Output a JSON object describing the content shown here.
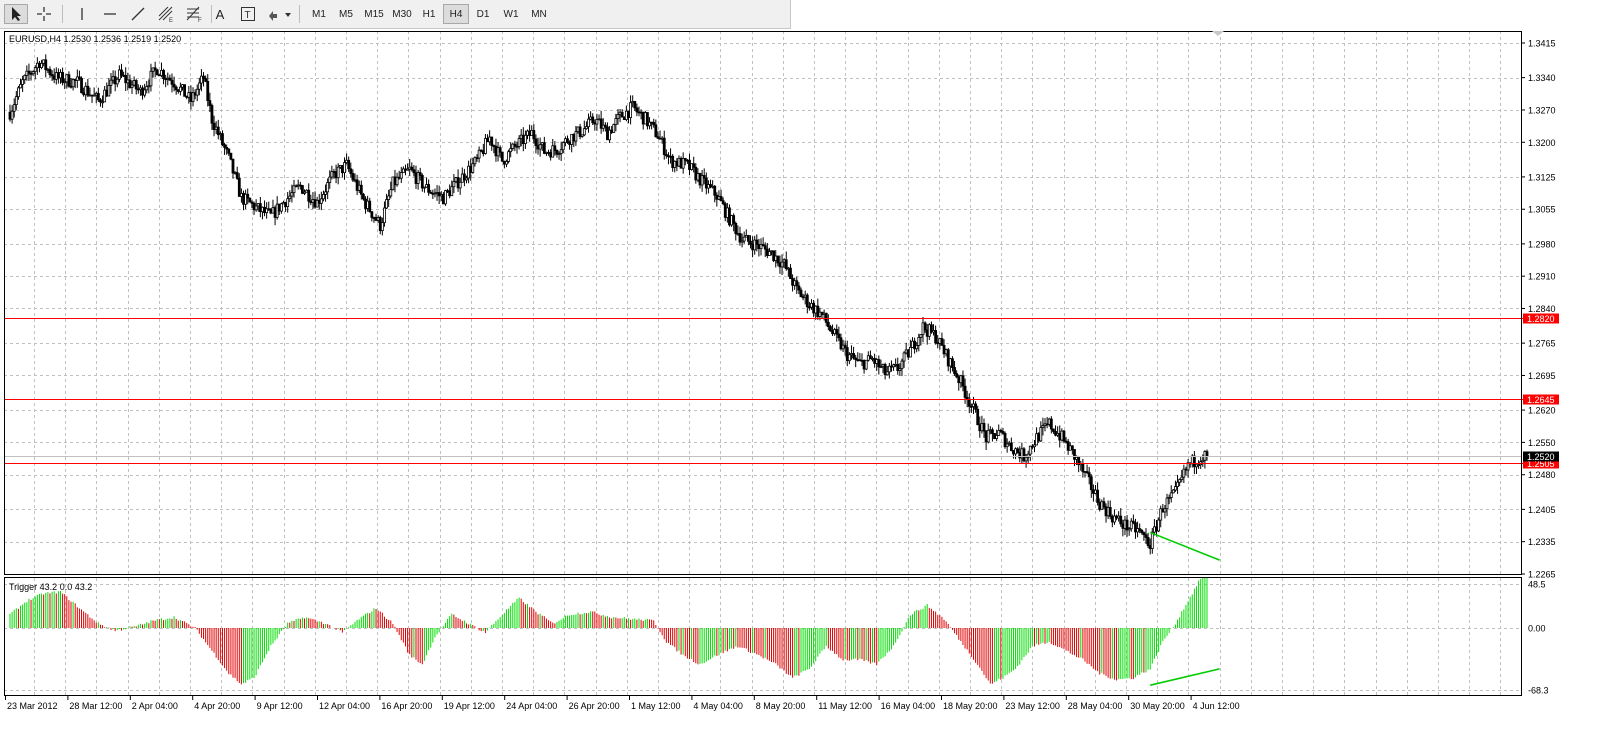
{
  "toolbar": {
    "tools": [
      {
        "name": "cursor-tool",
        "icon": "arrow-cursor-icon"
      },
      {
        "name": "crosshair-tool",
        "icon": "crosshair-icon"
      },
      {
        "name": "vertical-line-tool",
        "icon": "vertical-line-icon"
      },
      {
        "name": "horizontal-line-tool",
        "icon": "horizontal-line-icon"
      },
      {
        "name": "trendline-tool",
        "icon": "trendline-icon"
      },
      {
        "name": "equidistant-channel-tool",
        "icon": "channel-icon"
      },
      {
        "name": "fibonacci-tool",
        "icon": "fibonacci-icon"
      },
      {
        "name": "text-tool",
        "icon": "text-icon",
        "label": "A"
      },
      {
        "name": "text-label-tool",
        "icon": "text-label-icon",
        "label": "T"
      },
      {
        "name": "arrows-tool",
        "icon": "arrows-dropdown-icon"
      }
    ],
    "timeframes": [
      "M1",
      "M5",
      "M15",
      "M30",
      "H1",
      "H4",
      "D1",
      "W1",
      "MN"
    ],
    "active_timeframe": "H4"
  },
  "chart": {
    "info": "EURUSD,H4  1.2530 1.2536 1.2519 1.2520",
    "price_axis": [
      "1.3415",
      "1.3340",
      "1.3270",
      "1.3200",
      "1.3125",
      "1.3055",
      "1.2980",
      "1.2910",
      "1.2840",
      "1.2765",
      "1.2695",
      "1.2620",
      "1.2550",
      "1.2480",
      "1.2405",
      "1.2335",
      "1.2265"
    ],
    "hlines": [
      {
        "label": "1.2820",
        "price": 1.282,
        "color": "#ff0000"
      },
      {
        "label": "1.2645",
        "price": 1.2645,
        "color": "#ff0000"
      },
      {
        "label": "1.2505",
        "price": 1.2505,
        "color": "#ff0000"
      }
    ],
    "current_price": {
      "label": "1.2520",
      "price": 1.252
    },
    "colors": {
      "grid": "#c0c0c0",
      "candle": "#000000",
      "level": "#ff0000",
      "trend": "#00cc00",
      "hist_pos": "#00dd00",
      "hist_neg": "#e00000"
    }
  },
  "indicator": {
    "label": "Trigger 43.2 0.0 43.2",
    "axis": [
      "48.5",
      "0.00",
      "-68.3"
    ]
  },
  "time_axis": [
    "23 Mar 2012",
    "28 Mar 12:00",
    "2 Apr 04:00",
    "4 Apr 20:00",
    "9 Apr 12:00",
    "12 Apr 04:00",
    "16 Apr 20:00",
    "19 Apr 12:00",
    "24 Apr 04:00",
    "26 Apr 20:00",
    "1 May 12:00",
    "4 May 04:00",
    "8 May 20:00",
    "11 May 12:00",
    "16 May 04:00",
    "18 May 20:00",
    "23 May 12:00",
    "28 May 04:00",
    "30 May 20:00",
    "4 Jun 12:00"
  ],
  "chart_data": {
    "type": "candlestick",
    "symbol": "EURUSD",
    "timeframe": "H4",
    "ylim": [
      1.2265,
      1.3415
    ],
    "close_path": [
      [
        0,
        1.3265
      ],
      [
        6,
        1.333
      ],
      [
        14,
        1.3375
      ],
      [
        22,
        1.334
      ],
      [
        32,
        1.333
      ],
      [
        42,
        1.329
      ],
      [
        52,
        1.3345
      ],
      [
        62,
        1.331
      ],
      [
        70,
        1.336
      ],
      [
        78,
        1.333
      ],
      [
        86,
        1.329
      ],
      [
        92,
        1.334
      ],
      [
        96,
        1.325
      ],
      [
        104,
        1.3165
      ],
      [
        110,
        1.308
      ],
      [
        118,
        1.3055
      ],
      [
        124,
        1.304
      ],
      [
        130,
        1.307
      ],
      [
        138,
        1.3105
      ],
      [
        146,
        1.307
      ],
      [
        154,
        1.313
      ],
      [
        160,
        1.315
      ],
      [
        168,
        1.3075
      ],
      [
        176,
        1.302
      ],
      [
        182,
        1.311
      ],
      [
        190,
        1.314
      ],
      [
        198,
        1.31
      ],
      [
        206,
        1.308
      ],
      [
        214,
        1.312
      ],
      [
        222,
        1.316
      ],
      [
        228,
        1.321
      ],
      [
        234,
        1.316
      ],
      [
        240,
        1.319
      ],
      [
        248,
        1.322
      ],
      [
        254,
        1.318
      ],
      [
        260,
        1.3185
      ],
      [
        266,
        1.321
      ],
      [
        272,
        1.3225
      ],
      [
        278,
        1.325
      ],
      [
        284,
        1.322
      ],
      [
        290,
        1.3255
      ],
      [
        296,
        1.3275
      ],
      [
        302,
        1.325
      ],
      [
        308,
        1.3215
      ],
      [
        314,
        1.316
      ],
      [
        322,
        1.315
      ],
      [
        330,
        1.311
      ],
      [
        336,
        1.3085
      ],
      [
        342,
        1.3035
      ],
      [
        348,
        1.299
      ],
      [
        354,
        1.298
      ],
      [
        362,
        1.296
      ],
      [
        368,
        1.2935
      ],
      [
        374,
        1.288
      ],
      [
        380,
        1.285
      ],
      [
        386,
        1.2825
      ],
      [
        392,
        1.278
      ],
      [
        398,
        1.274
      ],
      [
        404,
        1.272
      ],
      [
        410,
        1.273
      ],
      [
        416,
        1.27
      ],
      [
        422,
        1.271
      ],
      [
        428,
        1.275
      ],
      [
        434,
        1.28
      ],
      [
        440,
        1.278
      ],
      [
        446,
        1.273
      ],
      [
        452,
        1.268
      ],
      [
        458,
        1.262
      ],
      [
        464,
        1.256
      ],
      [
        470,
        1.257
      ],
      [
        476,
        1.254
      ],
      [
        482,
        1.252
      ],
      [
        488,
        1.256
      ],
      [
        494,
        1.259
      ],
      [
        500,
        1.256
      ],
      [
        506,
        1.252
      ],
      [
        512,
        1.247
      ],
      [
        518,
        1.242
      ],
      [
        524,
        1.239
      ],
      [
        530,
        1.237
      ],
      [
        536,
        1.236
      ],
      [
        542,
        1.233
      ],
      [
        548,
        1.241
      ],
      [
        554,
        1.244
      ],
      [
        560,
        1.25
      ],
      [
        566,
        1.252
      ]
    ],
    "levels": [
      1.282,
      1.2645,
      1.2505
    ],
    "last": {
      "open": 1.253,
      "high": 1.2536,
      "low": 1.2519,
      "close": 1.252
    },
    "indicator": {
      "name": "Trigger",
      "values": [
        43.2,
        0.0,
        43.2
      ],
      "ylim": [
        -68.3,
        48.5
      ],
      "histogram_path": [
        [
          0,
          15
        ],
        [
          8,
          30
        ],
        [
          16,
          38
        ],
        [
          24,
          40
        ],
        [
          34,
          20
        ],
        [
          42,
          5
        ],
        [
          50,
          -3
        ],
        [
          60,
          2
        ],
        [
          68,
          8
        ],
        [
          78,
          12
        ],
        [
          88,
          0
        ],
        [
          96,
          -25
        ],
        [
          104,
          -50
        ],
        [
          110,
          -62
        ],
        [
          116,
          -55
        ],
        [
          124,
          -20
        ],
        [
          132,
          5
        ],
        [
          140,
          12
        ],
        [
          150,
          5
        ],
        [
          158,
          -5
        ],
        [
          166,
          10
        ],
        [
          174,
          22
        ],
        [
          182,
          5
        ],
        [
          190,
          -30
        ],
        [
          196,
          -40
        ],
        [
          202,
          -10
        ],
        [
          210,
          15
        ],
        [
          218,
          5
        ],
        [
          226,
          -5
        ],
        [
          234,
          15
        ],
        [
          242,
          33
        ],
        [
          250,
          18
        ],
        [
          258,
          5
        ],
        [
          266,
          15
        ],
        [
          276,
          18
        ],
        [
          286,
          12
        ],
        [
          296,
          10
        ],
        [
          306,
          8
        ],
        [
          312,
          -15
        ],
        [
          320,
          -30
        ],
        [
          328,
          -40
        ],
        [
          336,
          -30
        ],
        [
          346,
          -20
        ],
        [
          356,
          -30
        ],
        [
          364,
          -40
        ],
        [
          372,
          -55
        ],
        [
          380,
          -45
        ],
        [
          388,
          -20
        ],
        [
          396,
          -35
        ],
        [
          404,
          -35
        ],
        [
          412,
          -40
        ],
        [
          420,
          -20
        ],
        [
          428,
          15
        ],
        [
          436,
          25
        ],
        [
          444,
          10
        ],
        [
          452,
          -15
        ],
        [
          460,
          -40
        ],
        [
          466,
          -62
        ],
        [
          472,
          -55
        ],
        [
          478,
          -45
        ],
        [
          486,
          -20
        ],
        [
          494,
          -15
        ],
        [
          502,
          -25
        ],
        [
          510,
          -35
        ],
        [
          518,
          -50
        ],
        [
          526,
          -57
        ],
        [
          534,
          -55
        ],
        [
          542,
          -45
        ],
        [
          548,
          -15
        ],
        [
          554,
          5
        ],
        [
          560,
          30
        ],
        [
          566,
          55
        ]
      ]
    },
    "trendlines": [
      {
        "pane": "price",
        "from": [
          542,
          1.2355
        ],
        "to": [
          575,
          1.2295
        ]
      },
      {
        "pane": "indicator",
        "from": [
          542,
          -63
        ],
        "to": [
          575,
          -45
        ]
      }
    ]
  }
}
